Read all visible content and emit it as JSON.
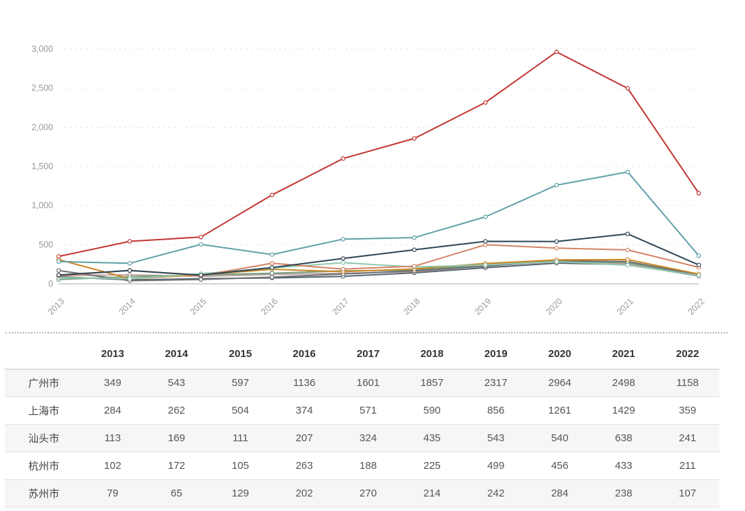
{
  "page": {
    "background": "#ffffff"
  },
  "chart_data": {
    "type": "line",
    "title": "",
    "legend": "none",
    "x": [
      "2013",
      "2014",
      "2015",
      "2016",
      "2017",
      "2018",
      "2019",
      "2020",
      "2021",
      "2022"
    ],
    "x_axis": {
      "label_rotation_deg": 45,
      "axis_line_color": "#aaaaaa",
      "label_color": "#9b9b9b"
    },
    "y_axis": {
      "min": 0,
      "max": 3000,
      "interval": 500,
      "tick_labels": [
        "0",
        "500",
        "1,000",
        "1,500",
        "2,000",
        "2,500",
        "3,000"
      ],
      "grid": "dashed horizontal",
      "grid_color": "#dddddd",
      "label_color": "#999999"
    },
    "marker": "hollow-circle",
    "series": [
      {
        "name": "广州市",
        "color": "#c23531",
        "values": [
          349,
          543,
          597,
          1136,
          1601,
          1857,
          2317,
          2964,
          2498,
          1158
        ]
      },
      {
        "name": "上海市",
        "color": "#61a0a8",
        "values": [
          284,
          262,
          504,
          374,
          571,
          590,
          856,
          1261,
          1429,
          359
        ]
      },
      {
        "name": "汕头市",
        "color": "#2f4554",
        "values": [
          113,
          169,
          111,
          207,
          324,
          435,
          543,
          540,
          638,
          241
        ]
      },
      {
        "name": "杭州市",
        "color": "#d48265",
        "values": [
          102,
          172,
          105,
          263,
          188,
          225,
          499,
          456,
          433,
          211
        ]
      },
      {
        "name": "苏州市",
        "color": "#91c7ae",
        "values": [
          79,
          65,
          129,
          202,
          270,
          214,
          242,
          284,
          238,
          107
        ]
      },
      {
        "name": "",
        "color": "#ca8622",
        "estimated": true,
        "values": [
          310,
          65,
          115,
          185,
          155,
          190,
          260,
          305,
          310,
          125
        ]
      },
      {
        "name": "",
        "color": "#6e7074",
        "estimated": true,
        "values": [
          170,
          40,
          55,
          85,
          125,
          165,
          225,
          295,
          285,
          115
        ]
      },
      {
        "name": "",
        "color": "#749f83",
        "estimated": true,
        "values": [
          55,
          90,
          115,
          135,
          165,
          175,
          245,
          290,
          270,
          110
        ]
      },
      {
        "name": "",
        "color": "#bda29a",
        "estimated": true,
        "values": [
          105,
          115,
          95,
          120,
          135,
          155,
          230,
          280,
          255,
          105
        ]
      },
      {
        "name": "",
        "color": "#546570",
        "estimated": true,
        "values": [
          90,
          50,
          65,
          75,
          95,
          140,
          205,
          265,
          245,
          100
        ]
      }
    ]
  },
  "table": {
    "corner_label": "",
    "columns": [
      "2013",
      "2014",
      "2015",
      "2016",
      "2017",
      "2018",
      "2019",
      "2020",
      "2021",
      "2022"
    ],
    "rows": [
      {
        "city": "广州市",
        "values": [
          349,
          543,
          597,
          1136,
          1601,
          1857,
          2317,
          2964,
          2498,
          1158
        ]
      },
      {
        "city": "上海市",
        "values": [
          284,
          262,
          504,
          374,
          571,
          590,
          856,
          1261,
          1429,
          359
        ]
      },
      {
        "city": "汕头市",
        "values": [
          113,
          169,
          111,
          207,
          324,
          435,
          543,
          540,
          638,
          241
        ]
      },
      {
        "city": "杭州市",
        "values": [
          102,
          172,
          105,
          263,
          188,
          225,
          499,
          456,
          433,
          211
        ]
      },
      {
        "city": "苏州市",
        "values": [
          79,
          65,
          129,
          202,
          270,
          214,
          242,
          284,
          238,
          107
        ]
      }
    ],
    "zebra_color": "#f6f6f7"
  }
}
